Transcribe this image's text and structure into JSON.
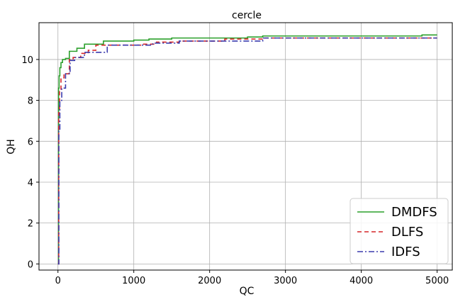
{
  "chart_data": {
    "type": "line",
    "title": "cercle",
    "xlabel": "QC",
    "ylabel": "QH",
    "xlim": [
      -250,
      5200
    ],
    "ylim": [
      -0.3,
      11.8
    ],
    "xticks": [
      0,
      1000,
      2000,
      3000,
      4000,
      5000
    ],
    "yticks": [
      0,
      2,
      4,
      6,
      8,
      10
    ],
    "grid": true,
    "legend_position": "bottom-right",
    "series": [
      {
        "name": "DMDFS",
        "color": "#2ca02c",
        "dash": "solid",
        "step": true,
        "x": [
          0,
          8,
          15,
          25,
          40,
          60,
          100,
          150,
          250,
          350,
          600,
          1000,
          1200,
          1500,
          2500,
          2700,
          4800,
          5000
        ],
        "y": [
          0,
          8.6,
          9.2,
          9.6,
          9.85,
          10.0,
          10.05,
          10.4,
          10.55,
          10.75,
          10.9,
          10.95,
          11.0,
          11.05,
          11.1,
          11.15,
          11.2,
          11.2
        ]
      },
      {
        "name": "DLFS",
        "color": "#d62728",
        "dash": "6,4",
        "step": true,
        "x": [
          0,
          10,
          20,
          40,
          80,
          150,
          200,
          300,
          400,
          500,
          1100,
          1300,
          1600,
          2200,
          2700,
          5000
        ],
        "y": [
          0,
          7.4,
          8.5,
          9.1,
          9.3,
          10.0,
          10.1,
          10.3,
          10.45,
          10.7,
          10.75,
          10.85,
          10.9,
          11.0,
          11.05,
          11.05
        ]
      },
      {
        "name": "IDFS",
        "color": "#3b3bad",
        "dash": "8,3,2,3",
        "step": true,
        "x": [
          0,
          12,
          25,
          50,
          100,
          160,
          220,
          350,
          650,
          1250,
          1600,
          2700,
          5000
        ],
        "y": [
          0,
          6.5,
          8.0,
          8.6,
          9.3,
          9.95,
          10.1,
          10.35,
          10.7,
          10.8,
          10.9,
          11.05,
          11.05
        ]
      }
    ]
  }
}
